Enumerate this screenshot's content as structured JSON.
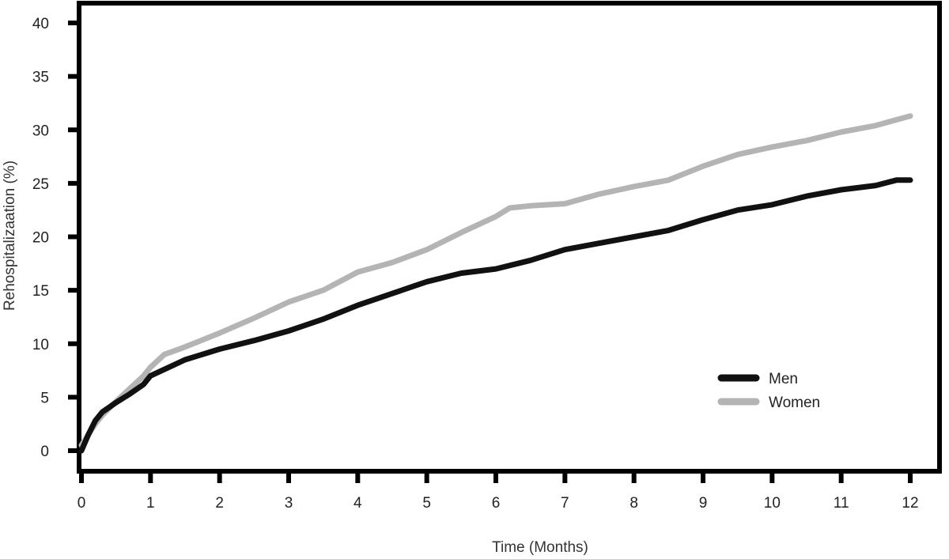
{
  "chart_data": {
    "type": "line",
    "title": "",
    "xlabel": "Time (Months)",
    "ylabel": "Rehospitalizaation (%)",
    "xlim": [
      0,
      12
    ],
    "ylim": [
      0,
      40
    ],
    "x_ticks": [
      "0",
      "1",
      "2",
      "3",
      "4",
      "5",
      "6",
      "7",
      "8",
      "9",
      "10",
      "11",
      "12"
    ],
    "y_ticks": [
      "0",
      "5",
      "10",
      "15",
      "20",
      "25",
      "30",
      "35",
      "40"
    ],
    "grid": false,
    "legend_position": "bottom-right",
    "series": [
      {
        "name": "Men",
        "color": "#111111",
        "x": [
          0,
          0.1,
          0.2,
          0.3,
          0.5,
          0.7,
          0.9,
          1.0,
          1.2,
          1.5,
          2.0,
          2.5,
          3.0,
          3.5,
          4.0,
          4.5,
          5.0,
          5.5,
          6.0,
          6.5,
          7.0,
          7.5,
          8.0,
          8.5,
          9.0,
          9.5,
          10.0,
          10.5,
          11.0,
          11.5,
          11.8,
          12.0
        ],
        "y": [
          0,
          1.5,
          2.8,
          3.6,
          4.5,
          5.3,
          6.2,
          7.0,
          7.6,
          8.5,
          9.5,
          10.3,
          11.2,
          12.3,
          13.6,
          14.7,
          15.8,
          16.6,
          17.0,
          17.8,
          18.8,
          19.4,
          20.0,
          20.6,
          21.6,
          22.5,
          23.0,
          23.8,
          24.4,
          24.8,
          25.3,
          25.3
        ]
      },
      {
        "name": "Women",
        "color": "#b4b4b4",
        "x": [
          0,
          0.1,
          0.2,
          0.3,
          0.5,
          0.7,
          0.9,
          1.0,
          1.2,
          1.5,
          2.0,
          2.5,
          3.0,
          3.5,
          4.0,
          4.5,
          5.0,
          5.5,
          6.0,
          6.2,
          6.5,
          7.0,
          7.5,
          8.0,
          8.5,
          9.0,
          9.5,
          10.0,
          10.5,
          11.0,
          11.5,
          12.0
        ],
        "y": [
          0.5,
          1.5,
          2.5,
          3.3,
          4.6,
          5.8,
          7.0,
          7.8,
          9.0,
          9.7,
          11.0,
          12.4,
          13.9,
          15.0,
          16.7,
          17.6,
          18.8,
          20.4,
          21.9,
          22.7,
          22.9,
          23.1,
          24.0,
          24.7,
          25.3,
          26.6,
          27.7,
          28.4,
          29.0,
          29.8,
          30.4,
          31.3
        ]
      }
    ]
  }
}
